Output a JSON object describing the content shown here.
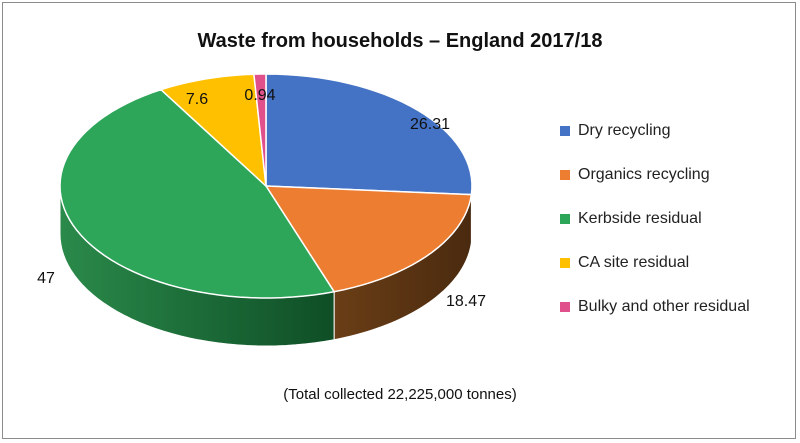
{
  "chart_data": {
    "type": "pie",
    "title": "Waste from households – England 2017/18",
    "footnote": "(Total collected 22,225,000 tonnes)",
    "slices": [
      {
        "name": "Dry recycling",
        "value": 26.31,
        "color": "#4472C4",
        "side": "#2f4f8a"
      },
      {
        "name": "Organics recycling",
        "value": 18.47,
        "color": "#ED7D31",
        "side": "#5c3a1a"
      },
      {
        "name": "Kerbside residual",
        "value": 47,
        "color": "#2EA65A",
        "side": "#1f7a3d"
      },
      {
        "name": "CA site residual",
        "value": 7.6,
        "color": "#FFC000",
        "side": "#b38600"
      },
      {
        "name": "Bulky and other residual",
        "value": 0.94,
        "color": "#E0508A",
        "side": "#9e3560"
      }
    ],
    "labels": [
      "26.31",
      "18.47",
      "47",
      "7.6",
      "0.94"
    ],
    "legend_position": "right"
  }
}
